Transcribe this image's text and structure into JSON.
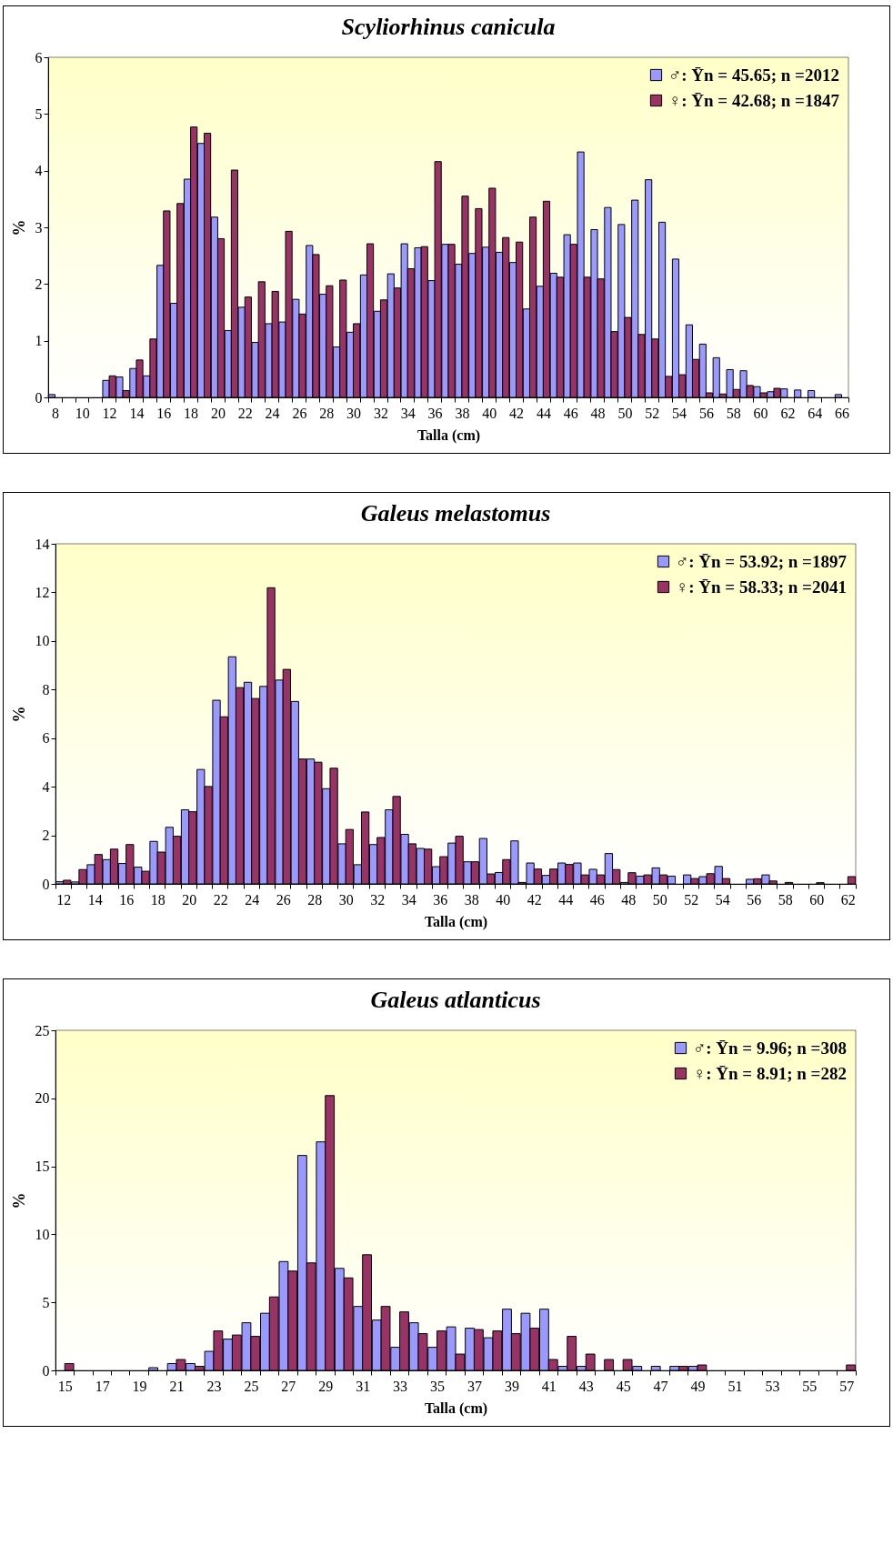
{
  "chart_data": [
    {
      "type": "bar",
      "title": "Scyliorhinus canicula",
      "xlabel": "Talla (cm)",
      "ylabel": "%",
      "legend": "top right",
      "ylim": [
        0,
        6
      ],
      "yticks": [
        0,
        1,
        2,
        3,
        4,
        5,
        6
      ],
      "categories": [
        "8",
        null,
        "10",
        null,
        "12",
        null,
        "14",
        null,
        "16",
        null,
        "18",
        null,
        "20",
        null,
        "22",
        null,
        "24",
        null,
        "26",
        null,
        "28",
        null,
        "30",
        null,
        "32",
        null,
        "34",
        null,
        "36",
        null,
        "38",
        null,
        "40",
        null,
        "42",
        null,
        "44",
        null,
        "46",
        null,
        "48",
        null,
        "50",
        null,
        "52",
        null,
        "54",
        null,
        "56",
        null,
        "58",
        null,
        "60",
        null,
        "62",
        null,
        "64",
        null,
        "66"
      ],
      "series": [
        {
          "name": "♂: Ȳn = 45.65; n =2012",
          "color": "#9999ff",
          "values": [
            0.05,
            0,
            0,
            0,
            0.3,
            0.36,
            0.51,
            0.38,
            2.33,
            1.66,
            3.85,
            4.48,
            3.18,
            1.18,
            1.59,
            0.97,
            1.3,
            1.33,
            1.73,
            2.68,
            1.82,
            0.89,
            1.15,
            2.16,
            1.52,
            2.18,
            2.71,
            2.64,
            2.06,
            2.7,
            2.35,
            2.54,
            2.65,
            2.56,
            2.38,
            1.56,
            1.96,
            2.19,
            2.87,
            4.33,
            2.96,
            3.35,
            3.05,
            3.48,
            3.84,
            3.09,
            2.44,
            1.28,
            0.94,
            0.7,
            0.49,
            0.47,
            0.19,
            0.1,
            0.15,
            0.13,
            0.12,
            0,
            0.05
          ]
        },
        {
          "name": "♀: Ȳn = 42.68; n =1847",
          "color": "#993366",
          "values": [
            0,
            0,
            0,
            0,
            0.38,
            0.12,
            0.66,
            1.03,
            3.29,
            3.42,
            4.77,
            4.66,
            2.8,
            4.01,
            1.77,
            2.04,
            1.87,
            2.93,
            1.47,
            2.52,
            1.97,
            2.07,
            1.3,
            2.71,
            1.72,
            1.93,
            2.27,
            2.66,
            4.16,
            2.7,
            3.55,
            3.33,
            3.69,
            2.82,
            2.74,
            3.18,
            3.46,
            2.12,
            2.7,
            2.12,
            2.09,
            1.16,
            1.41,
            1.11,
            1.03,
            0.37,
            0.4,
            0.67,
            0.08,
            0.06,
            0.14,
            0.21,
            0.08,
            0.16,
            0,
            0,
            0,
            0,
            0
          ]
        }
      ]
    },
    {
      "type": "bar",
      "title": "Galeus melastomus",
      "xlabel": "Talla (cm)",
      "ylabel": "%",
      "legend": "top right",
      "ylim": [
        0,
        14
      ],
      "yticks": [
        0,
        2,
        4,
        6,
        8,
        10,
        12,
        14
      ],
      "categories": [
        "12",
        null,
        "14",
        null,
        "16",
        null,
        "18",
        null,
        "20",
        null,
        "22",
        null,
        "24",
        null,
        "26",
        null,
        "28",
        null,
        "30",
        null,
        "32",
        null,
        "34",
        null,
        "36",
        null,
        "38",
        null,
        "40",
        null,
        "42",
        null,
        "44",
        null,
        "46",
        null,
        "48",
        null,
        "50",
        null,
        "52",
        null,
        "54",
        null,
        "56",
        null,
        "58",
        null,
        "60",
        null,
        "62"
      ],
      "series": [
        {
          "name": "♂: Ȳn = 53.92; n =1897",
          "color": "#9999ff",
          "values": [
            0.09,
            0.08,
            0.79,
            1.0,
            0.84,
            0.69,
            1.75,
            2.33,
            3.05,
            4.71,
            7.56,
            9.35,
            8.3,
            8.13,
            8.39,
            7.51,
            5.14,
            3.92,
            1.65,
            0.79,
            1.62,
            3.05,
            2.04,
            1.46,
            0.71,
            1.68,
            0.91,
            1.87,
            0.47,
            1.77,
            0.86,
            0.35,
            0.86,
            0.86,
            0.6,
            1.25,
            0.06,
            0.32,
            0.66,
            0.32,
            0.37,
            0.3,
            0.72,
            0,
            0.19,
            0.37,
            0,
            0,
            0,
            0,
            0
          ]
        },
        {
          "name": "♀: Ȳn = 58.33; n =2041",
          "color": "#993366",
          "values": [
            0.15,
            0.59,
            1.21,
            1.43,
            1.62,
            0.52,
            1.31,
            1.96,
            2.97,
            4.01,
            6.88,
            8.08,
            7.63,
            12.19,
            8.83,
            5.14,
            5.01,
            4.76,
            2.24,
            2.96,
            1.91,
            3.6,
            1.65,
            1.43,
            1.12,
            1.96,
            0.91,
            0.41,
            1.0,
            0.06,
            0.61,
            0.61,
            0.8,
            0.37,
            0.37,
            0.59,
            0.46,
            0.37,
            0.37,
            0,
            0.22,
            0.42,
            0.22,
            0,
            0.21,
            0.12,
            0.06,
            0,
            0.05,
            0,
            0.3
          ]
        }
      ]
    },
    {
      "type": "bar",
      "title": "Galeus atlanticus",
      "xlabel": "Talla (cm)",
      "ylabel": "%",
      "legend": "top right",
      "ylim": [
        0,
        25
      ],
      "yticks": [
        0,
        5,
        10,
        15,
        20,
        25
      ],
      "categories": [
        "15",
        null,
        "17",
        null,
        "19",
        null,
        "21",
        null,
        "23",
        null,
        "25",
        null,
        "27",
        null,
        "29",
        null,
        "31",
        null,
        "33",
        null,
        "35",
        null,
        "37",
        null,
        "39",
        null,
        "41",
        null,
        "43",
        null,
        "45",
        null,
        "47",
        null,
        "49",
        null,
        "51",
        null,
        "53",
        null,
        "55",
        null,
        "57"
      ],
      "series": [
        {
          "name": "♂: Ȳn = 9.96; n =308",
          "color": "#9999ff",
          "values": [
            0,
            0,
            0,
            0,
            0,
            0.2,
            0.5,
            0.5,
            1.4,
            2.3,
            3.5,
            4.2,
            8.0,
            15.8,
            16.8,
            7.5,
            4.7,
            3.7,
            1.7,
            3.5,
            1.7,
            3.2,
            3.1,
            2.4,
            4.5,
            4.2,
            4.5,
            0.3,
            0.3,
            0,
            0,
            0.3,
            0.3,
            0.3,
            0.3,
            0,
            0,
            0,
            0,
            0,
            0,
            0,
            0
          ]
        },
        {
          "name": "♀: Ȳn = 8.91; n =282",
          "color": "#993366",
          "values": [
            0.5,
            0,
            0,
            0,
            0,
            0,
            0.8,
            0.3,
            2.9,
            2.6,
            2.5,
            5.4,
            7.3,
            7.9,
            20.2,
            6.8,
            8.5,
            4.7,
            4.3,
            2.7,
            2.9,
            1.2,
            3.0,
            2.9,
            2.7,
            3.1,
            0.8,
            2.5,
            1.2,
            0.8,
            0.8,
            0,
            0,
            0.3,
            0.4,
            0,
            0,
            0,
            0,
            0,
            0,
            0,
            0.4
          ]
        }
      ]
    }
  ]
}
